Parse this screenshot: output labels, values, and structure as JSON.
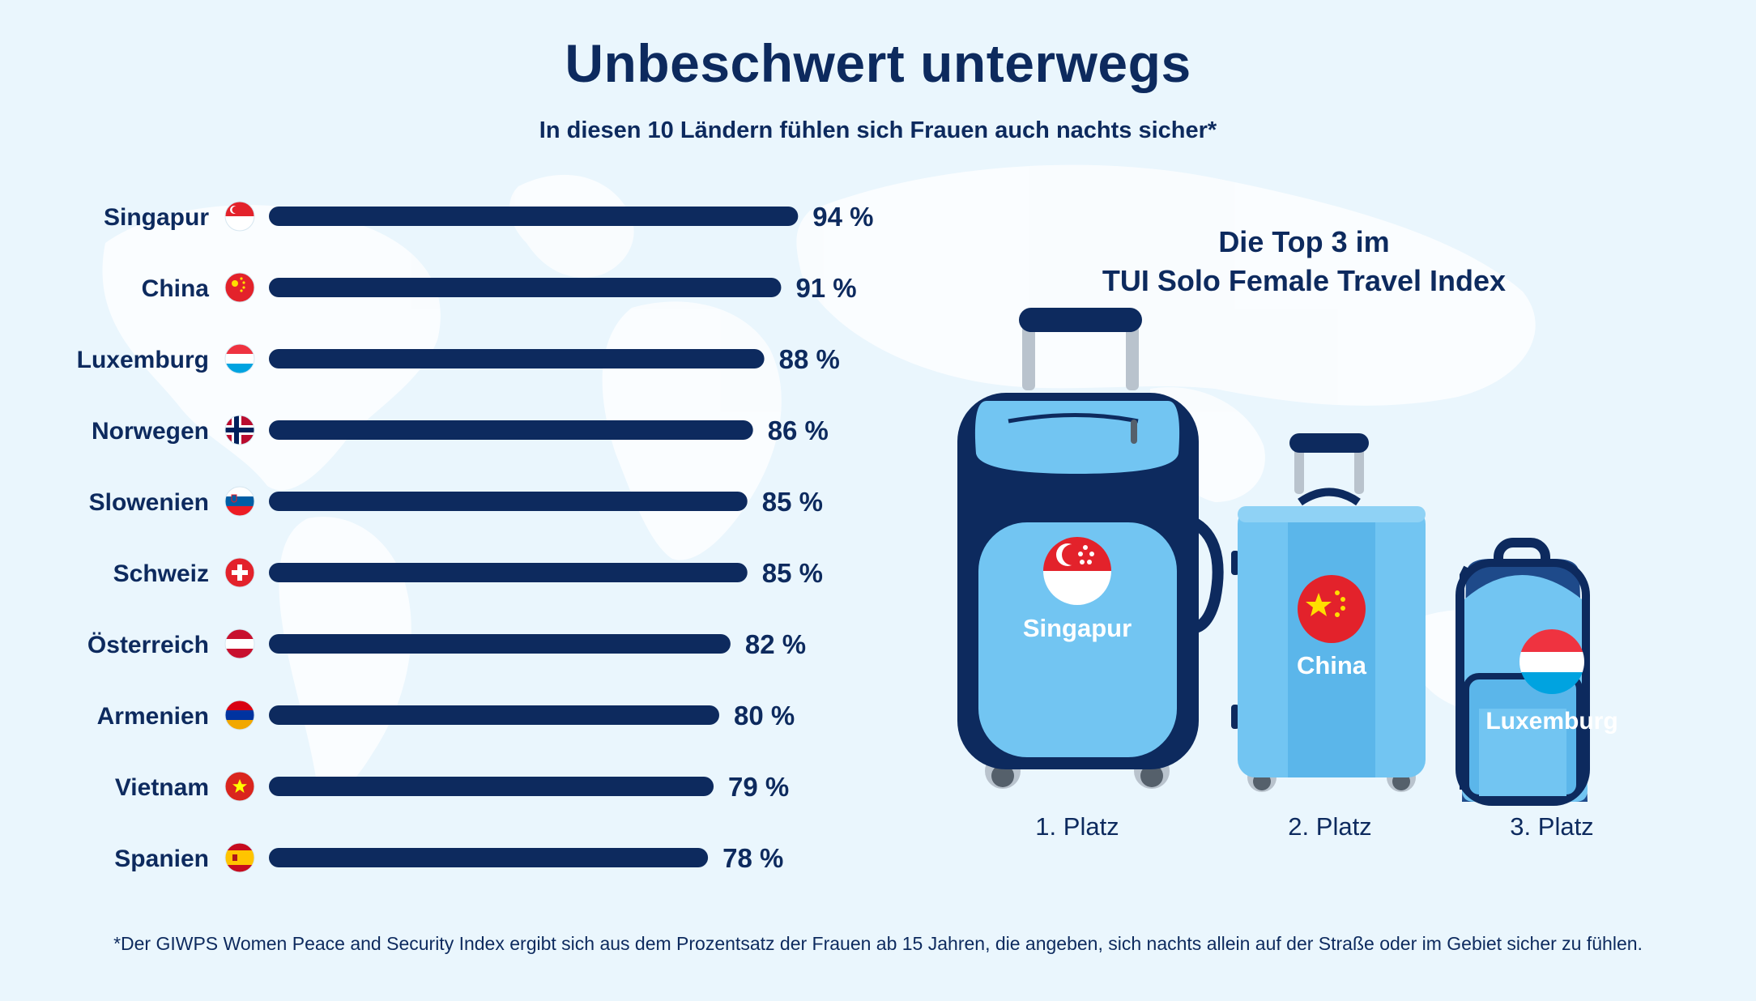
{
  "title": "Unbeschwert unterwegs",
  "subtitle": "In diesen 10 Ländern fühlen sich Frauen auch nachts sicher*",
  "chart_data": {
    "type": "bar",
    "orientation": "horizontal",
    "categories": [
      "Singapur",
      "China",
      "Luxemburg",
      "Norwegen",
      "Slowenien",
      "Schweiz",
      "Österreich",
      "Armenien",
      "Vietnam",
      "Spanien"
    ],
    "values": [
      94,
      91,
      88,
      86,
      85,
      85,
      82,
      80,
      79,
      78
    ],
    "value_labels": [
      "94 %",
      "91 %",
      "88 %",
      "86 %",
      "85 %",
      "85 %",
      "82 %",
      "80 %",
      "79 %",
      "78 %"
    ],
    "flags": [
      "singapore-flag-icon",
      "china-flag-icon",
      "luxembourg-flag-icon",
      "norway-flag-icon",
      "slovenia-flag-icon",
      "switzerland-flag-icon",
      "austria-flag-icon",
      "armenia-flag-icon",
      "vietnam-flag-icon",
      "spain-flag-icon"
    ],
    "unit": "%",
    "xlim": [
      0,
      100
    ],
    "grid": false,
    "bar_color": "#0d2a5e"
  },
  "top3": {
    "title_line1": "Die Top 3 im",
    "title_line2": "TUI Solo Female Travel Index",
    "items": [
      {
        "country": "Singapur",
        "place": "1. Platz",
        "flag": "singapore-flag-icon",
        "icon": "suitcase-large-icon"
      },
      {
        "country": "China",
        "place": "2. Platz",
        "flag": "china-flag-icon",
        "icon": "suitcase-medium-icon"
      },
      {
        "country": "Luxemburg",
        "place": "3. Platz",
        "flag": "luxembourg-flag-icon",
        "icon": "backpack-icon"
      }
    ]
  },
  "footnote": "*Der GIWPS Women Peace and Security Index ergibt sich aus dem Prozentsatz der Frauen ab 15 Jahren, die angeben, sich nachts allein auf der Straße oder im Gebiet sicher zu fühlen.",
  "colors": {
    "background": "#eaf6fd",
    "navy": "#0d2a5e",
    "light_blue": "#72c5f2",
    "mid_blue": "#5bb6ea",
    "map": "#ffffff"
  }
}
